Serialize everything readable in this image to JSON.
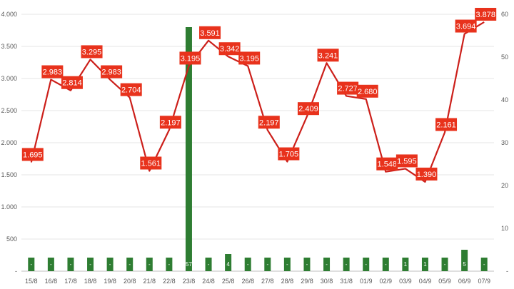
{
  "chart_data": {
    "type": "bar+line",
    "categories": [
      "15/8",
      "16/8",
      "17/8",
      "18/8",
      "19/8",
      "20/8",
      "21/8",
      "22/8",
      "23/8",
      "24/8",
      "25/8",
      "26/8",
      "27/8",
      "28/8",
      "29/8",
      "30/8",
      "31/8",
      "01/9",
      "02/9",
      "03/9",
      "04/9",
      "05/9",
      "06/9",
      "07/9"
    ],
    "line_series": {
      "values": [
        1695,
        2983,
        2814,
        3295,
        2983,
        2704,
        1561,
        2197,
        3195,
        3591,
        3342,
        3195,
        2197,
        1705,
        2409,
        3241,
        2727,
        2680,
        1548,
        1595,
        1390,
        2161,
        3694,
        3878
      ],
      "labels": [
        "1.695",
        "2.983",
        "2.814",
        "3.295",
        "2.983",
        "2.704",
        "1.561",
        "2.197",
        "3.195",
        "3.591",
        "3.342",
        "3.195",
        "2.197",
        "1.705",
        "2.409",
        "3.241",
        "2.727",
        "2.680",
        "1.548",
        "1.595",
        "1.390",
        "2.161",
        "3.694",
        "3.878"
      ],
      "color": "#cc1f1a",
      "label_bg": "#e8321c"
    },
    "bar_series": {
      "values": [
        0,
        0,
        0,
        0,
        0,
        0,
        0,
        0,
        57,
        0,
        4,
        0,
        0,
        0,
        0,
        0,
        0,
        0,
        0,
        1,
        1,
        0,
        5,
        0
      ],
      "labels": [
        "-",
        "-",
        "-",
        "-",
        "-",
        "-",
        "-",
        "-",
        "57",
        "-",
        "4",
        "-",
        "-",
        "-",
        "-",
        "-",
        "-",
        "-",
        "-",
        "1",
        "1",
        "-",
        "5",
        "-"
      ],
      "color": "#2e7d32"
    },
    "y_left": {
      "ylim": [
        0,
        4000
      ],
      "ticks": [
        "-",
        "500",
        "1.000",
        "1.500",
        "2.000",
        "2.500",
        "3.000",
        "3.500",
        "4.000"
      ]
    },
    "y_right": {
      "ylim": [
        0,
        60
      ],
      "ticks": [
        "-",
        "10",
        "20",
        "30",
        "40",
        "50",
        "60"
      ]
    },
    "grid": true,
    "legend": "none"
  }
}
